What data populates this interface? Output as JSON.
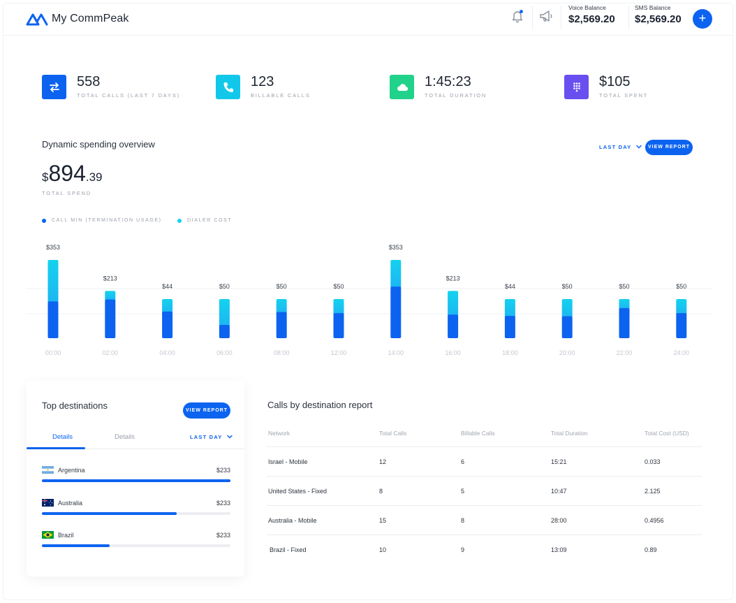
{
  "app": {
    "title": "My CommPeak"
  },
  "header": {
    "voice_balance_label": "Voice Balance",
    "voice_balance_value": "$2,569.20",
    "sms_balance_label": "SMS Balance",
    "sms_balance_value": "$2,569.20",
    "add_label": "+",
    "icons": [
      "bell-icon",
      "megaphone-icon",
      "plus-icon"
    ],
    "notification_dot_color": "#0c63f0"
  },
  "stats": [
    {
      "value": "558",
      "caption": "TOTAL CALLS (LAST 7 DAYS)",
      "icon": "swap-arrows-icon",
      "color": "#0c63f0"
    },
    {
      "value": "123",
      "caption": "BILLABLE CALLS",
      "icon": "phone-icon",
      "color": "#12c8ea"
    },
    {
      "value": "1:45:23",
      "caption": "TOTAL DURATION",
      "icon": "cloud-icon",
      "color": "#20d28a"
    },
    {
      "value": "$105",
      "caption": "TOTAL SPENT",
      "icon": "dialpad-icon",
      "color": "#6a4ff0"
    }
  ],
  "spending": {
    "title": "Dynamic spending overview",
    "period": "LAST DAY",
    "view_report": "VIEW REPORT",
    "amount_currency": "$",
    "amount_int": "894",
    "amount_dec": ".39",
    "amount_caption": "TOTAL SPEND",
    "legend": [
      {
        "label": "CALL MIN (TERMINATION USAGE)",
        "color": "#0c63f0"
      },
      {
        "label": "DIALER COST",
        "color": "#14d2ee"
      }
    ]
  },
  "chart_data": {
    "type": "bar",
    "stacked": true,
    "categories": [
      "00:00",
      "02:00",
      "04:00",
      "06:00",
      "08:00",
      "12:00",
      "14:00",
      "16:00",
      "18:00",
      "20:00",
      "22:00",
      "24:00"
    ],
    "labels": [
      "$353",
      "$213",
      "$44",
      "$50",
      "$50",
      "$50",
      "$353",
      "$213",
      "$44",
      "$50",
      "$50",
      "$50"
    ],
    "totals": [
      353,
      213,
      44,
      50,
      50,
      50,
      353,
      213,
      44,
      50,
      50,
      50
    ],
    "series": [
      {
        "name": "CALL MIN (TERMINATION USAGE)",
        "color": "#0c63f0",
        "share": [
          0.47,
          0.82,
          0.68,
          0.34,
          0.67,
          0.64,
          0.66,
          0.5,
          0.57,
          0.56,
          0.77,
          0.64
        ]
      },
      {
        "name": "DIALER COST",
        "color": "#14d2ee",
        "share": [
          0.53,
          0.18,
          0.32,
          0.66,
          0.33,
          0.36,
          0.34,
          0.5,
          0.43,
          0.44,
          0.23,
          0.36
        ]
      }
    ],
    "grid": true
  },
  "top_destinations": {
    "title": "Top destinations",
    "view_report": "VIEW REPORT",
    "tabs": [
      "Details",
      "Details"
    ],
    "period": "LAST DAY",
    "items": [
      {
        "country": "Argentina",
        "amount": "$233",
        "flag": "argentina-flag-icon",
        "progress": 1.0
      },
      {
        "country": "Australia",
        "amount": "$233",
        "flag": "australia-flag-icon",
        "progress": 0.715
      },
      {
        "country": "Brazil",
        "amount": "$233",
        "flag": "brazil-flag-icon",
        "progress": 0.36
      }
    ]
  },
  "calls_report": {
    "title": "Calls by destination report",
    "columns": [
      "Network",
      "Total Calls",
      "Billable Calls",
      "Total Duration",
      "Total Cost (USD)"
    ],
    "rows": [
      [
        "Israel - Mobile",
        "12",
        "6",
        "15:21",
        "0.033"
      ],
      [
        "United States - Fixed",
        "8",
        "5",
        "10:47",
        "2.125"
      ],
      [
        "Australia - Mobile",
        "15",
        "8",
        "28:00",
        "0.4956"
      ],
      [
        "Brazil - Fixed",
        "10",
        "9",
        "13:09",
        "0.89"
      ]
    ]
  }
}
